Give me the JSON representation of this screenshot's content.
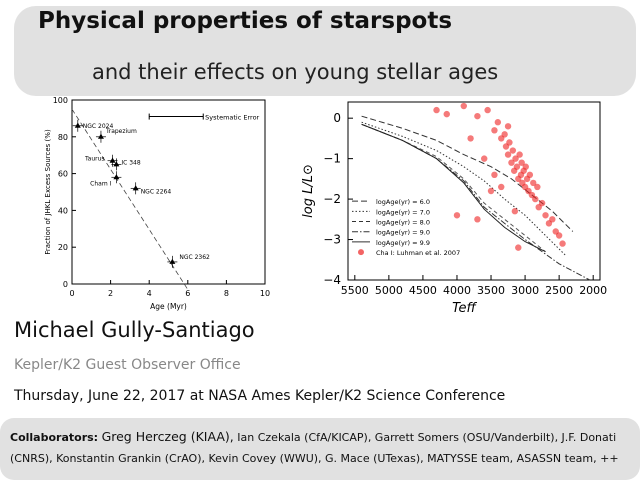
{
  "slide": {
    "title": "Physical properties of starspots",
    "subtitle": "and their effects on young stellar ages",
    "author": "Michael Gully-Santiago",
    "affiliation": "Kepler/K2 Guest Observer Office",
    "event": "Thursday, June 22, 2017 at NASA Ames Kepler/K2 Science Conference",
    "collab_label": "Collaborators:",
    "collab_lead": "Greg Herczeg (KIAA),",
    "collab_rest": "Ian Czekala (CfA/KICAP), Garrett Somers (OSU/Vanderbilt), J.F. Donati (CNRS), Konstantin Grankin (CrAO), Kevin Covey (WWU), G. Mace (UTexas), MATYSSE team, ASASSN team, ++"
  },
  "chart_data": [
    {
      "type": "scatter",
      "title": "",
      "xlabel": "Age (Myr)",
      "ylabel": "Fraction of JHKL Excess Sources (%)",
      "xlim": [
        0,
        10
      ],
      "ylim": [
        0,
        100
      ],
      "xticks": [
        "0",
        "2",
        "4",
        "6",
        "8",
        "10"
      ],
      "yticks": [
        "0",
        "20",
        "40",
        "60",
        "80",
        "100"
      ],
      "annotation": "Systematic Error",
      "points": [
        {
          "x": 0.3,
          "y": 86,
          "label": "NGC 2024"
        },
        {
          "x": 1.5,
          "y": 80,
          "label": "Trapezium"
        },
        {
          "x": 2.3,
          "y": 65,
          "label": "IC 348"
        },
        {
          "x": 2.1,
          "y": 67,
          "label": "Taurus"
        },
        {
          "x": 2.3,
          "y": 58,
          "label": "Cham I"
        },
        {
          "x": 3.3,
          "y": 52,
          "label": "NGC 2264"
        },
        {
          "x": 5.2,
          "y": 12,
          "label": "NGC 2362"
        }
      ]
    },
    {
      "type": "scatter",
      "xlabel": "Teff",
      "ylabel": "log L/L⊙",
      "xlim": [
        5600,
        1900
      ],
      "ylim": [
        -4,
        0.4
      ],
      "xticks": [
        "5500",
        "5000",
        "4500",
        "4000",
        "3500",
        "3000",
        "2500",
        "2000"
      ],
      "yticks": [
        "0",
        "−1",
        "−2",
        "−3",
        "−4"
      ],
      "legend": [
        "logAge(yr) = 6.0",
        "logAge(yr) = 7.0",
        "logAge(yr) = 8.0",
        "logAge(yr) = 9.0",
        "logAge(yr) = 9.9",
        "Cha I: Luhman et al. 2007"
      ],
      "legend_position": "bottom-left",
      "series_color": "#ee2222",
      "points": [
        {
          "x": 4300,
          "y": 0.2
        },
        {
          "x": 4150,
          "y": 0.1
        },
        {
          "x": 3900,
          "y": 0.3
        },
        {
          "x": 3700,
          "y": 0.05
        },
        {
          "x": 3550,
          "y": 0.2
        },
        {
          "x": 3450,
          "y": -0.3
        },
        {
          "x": 3400,
          "y": -0.1
        },
        {
          "x": 3350,
          "y": -0.5
        },
        {
          "x": 3300,
          "y": -0.4
        },
        {
          "x": 3280,
          "y": -0.7
        },
        {
          "x": 3250,
          "y": -0.9
        },
        {
          "x": 3230,
          "y": -0.6
        },
        {
          "x": 3200,
          "y": -1.1
        },
        {
          "x": 3180,
          "y": -0.8
        },
        {
          "x": 3160,
          "y": -1.3
        },
        {
          "x": 3140,
          "y": -1.0
        },
        {
          "x": 3120,
          "y": -1.2
        },
        {
          "x": 3100,
          "y": -1.5
        },
        {
          "x": 3080,
          "y": -0.9
        },
        {
          "x": 3060,
          "y": -1.4
        },
        {
          "x": 3050,
          "y": -1.1
        },
        {
          "x": 3040,
          "y": -1.6
        },
        {
          "x": 3020,
          "y": -1.3
        },
        {
          "x": 3000,
          "y": -1.7
        },
        {
          "x": 2990,
          "y": -1.2
        },
        {
          "x": 2970,
          "y": -1.5
        },
        {
          "x": 2950,
          "y": -1.8
        },
        {
          "x": 2930,
          "y": -1.4
        },
        {
          "x": 2900,
          "y": -1.9
        },
        {
          "x": 2880,
          "y": -1.6
        },
        {
          "x": 2850,
          "y": -2.0
        },
        {
          "x": 2820,
          "y": -1.7
        },
        {
          "x": 2800,
          "y": -2.2
        },
        {
          "x": 2750,
          "y": -2.1
        },
        {
          "x": 2700,
          "y": -2.4
        },
        {
          "x": 2650,
          "y": -2.6
        },
        {
          "x": 2600,
          "y": -2.5
        },
        {
          "x": 2550,
          "y": -2.8
        },
        {
          "x": 2500,
          "y": -2.9
        },
        {
          "x": 2450,
          "y": -3.1
        },
        {
          "x": 3600,
          "y": -1.0
        },
        {
          "x": 3700,
          "y": -2.5
        },
        {
          "x": 3800,
          "y": -0.5
        },
        {
          "x": 4000,
          "y": -2.4
        },
        {
          "x": 3500,
          "y": -1.8
        },
        {
          "x": 3450,
          "y": -1.4
        },
        {
          "x": 3150,
          "y": -2.3
        },
        {
          "x": 3100,
          "y": -3.2
        },
        {
          "x": 3350,
          "y": -1.7
        },
        {
          "x": 3250,
          "y": -0.2
        }
      ]
    }
  ]
}
